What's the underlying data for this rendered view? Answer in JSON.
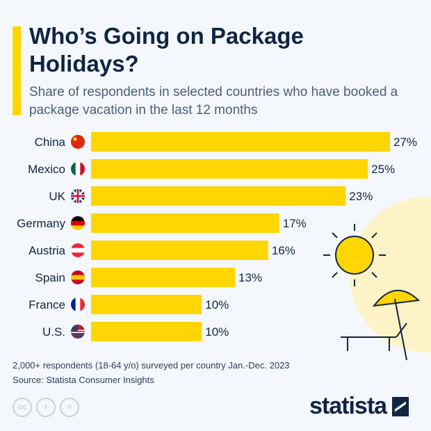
{
  "title": "Who’s Going on Package Holidays?",
  "subtitle": "Share of respondents in selected countries who have booked a package vacation in the last 12 months",
  "note": "2,000+ respondents (18-64 y/o) surveyed per country Jan.-Dec. 2023",
  "source": "Source: Statista Consumer Insights",
  "logo": "statista",
  "license_icons": [
    "cc-icon",
    "attribution-icon",
    "no-derivatives-icon"
  ],
  "colors": {
    "bar": "#ffd600",
    "text": "#0f2542",
    "background": "#f4f7fb"
  },
  "chart_data": {
    "type": "bar",
    "orientation": "horizontal",
    "categories": [
      "China",
      "Mexico",
      "UK",
      "Germany",
      "Austria",
      "Spain",
      "France",
      "U.S."
    ],
    "flags": [
      "china-flag-icon",
      "mexico-flag-icon",
      "uk-flag-icon",
      "germany-flag-icon",
      "austria-flag-icon",
      "spain-flag-icon",
      "france-flag-icon",
      "us-flag-icon"
    ],
    "values": [
      27,
      25,
      23,
      17,
      16,
      13,
      10,
      10
    ],
    "labels": [
      "27%",
      "25%",
      "23%",
      "17%",
      "16%",
      "13%",
      "10%",
      "10%"
    ],
    "unit": "%"
  }
}
